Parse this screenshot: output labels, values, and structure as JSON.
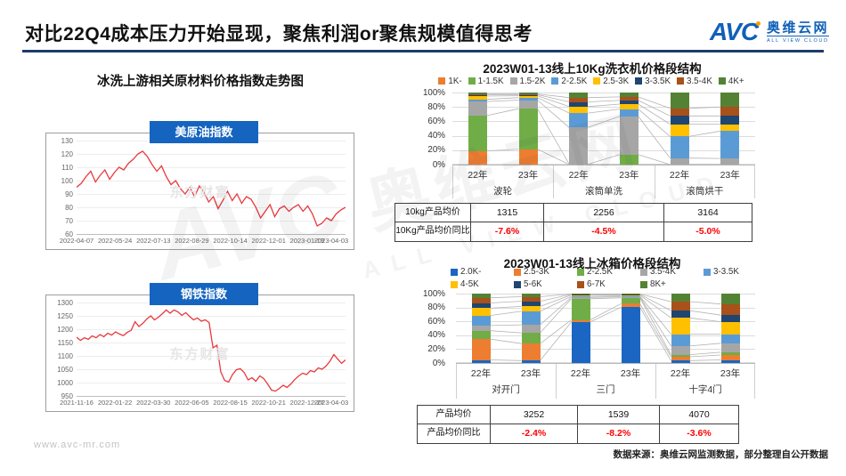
{
  "header": {
    "title": "对比22Q4成本压力开始显现，聚焦利润or聚焦规模值得思考",
    "logo": {
      "mark": "AVC",
      "name": "奥维云网",
      "tagline": "ALL VIEW CLOUD"
    }
  },
  "left_panel": {
    "section_title": "冰洗上游相关原材料价格指数走势图",
    "chart_watermark": "东方财富"
  },
  "chart_data": [
    {
      "type": "line",
      "title": "美原油指数",
      "line_color": "#E8393D",
      "ylim": [
        60,
        130
      ],
      "yticks": [
        130,
        120,
        110,
        100,
        90,
        80,
        70,
        60
      ],
      "xticks": [
        "2022-04-07",
        "2022-05-24",
        "2022-07-13",
        "2022-08-29",
        "2022-10-14",
        "2022-12-01",
        "2023-01-19",
        "2023-04-03"
      ],
      "grid": true,
      "values": [
        95,
        98,
        103,
        107,
        99,
        104,
        108,
        101,
        106,
        110,
        108,
        113,
        116,
        120,
        122,
        118,
        112,
        107,
        111,
        103,
        97,
        100,
        94,
        90,
        95,
        88,
        96,
        91,
        84,
        88,
        79,
        85,
        92,
        85,
        90,
        83,
        88,
        86,
        80,
        72,
        77,
        82,
        73,
        79,
        81,
        77,
        80,
        82,
        77,
        81,
        75,
        66,
        68,
        72,
        70,
        75,
        78,
        80
      ]
    },
    {
      "type": "line",
      "title": "钢铁指数",
      "line_color": "#E8393D",
      "ylim": [
        950,
        1300
      ],
      "yticks": [
        1300,
        1250,
        1200,
        1150,
        1100,
        1050,
        1000,
        950
      ],
      "xticks": [
        "2021-11-16",
        "2022-01-22",
        "2022-03-30",
        "2022-06-05",
        "2022-08-15",
        "2022-10-21",
        "2022-12-27",
        "2023-04-03"
      ],
      "grid": true,
      "values": [
        1170,
        1158,
        1168,
        1162,
        1175,
        1168,
        1180,
        1172,
        1185,
        1178,
        1190,
        1182,
        1176,
        1188,
        1196,
        1228,
        1210,
        1222,
        1238,
        1250,
        1235,
        1245,
        1258,
        1272,
        1260,
        1272,
        1265,
        1252,
        1262,
        1248,
        1235,
        1242,
        1230,
        1235,
        1225,
        1130,
        1140,
        1040,
        1008,
        1002,
        1030,
        1048,
        1052,
        1038,
        1010,
        1018,
        1005,
        1025,
        1015,
        995,
        972,
        968,
        978,
        990,
        982,
        995,
        1012,
        1025,
        1035,
        1030,
        1045,
        1040,
        1055,
        1050,
        1062,
        1080,
        1105,
        1088,
        1072,
        1085
      ]
    },
    {
      "type": "bar",
      "stacked": true,
      "unit": "percent",
      "title": "2023W01-13线上10Kg洗衣机价格段结构",
      "yticks": [
        "100%",
        "80%",
        "60%",
        "40%",
        "20%",
        "0%"
      ],
      "legend": [
        "1K-",
        "1-1.5K",
        "1.5-2K",
        "2-2.5K",
        "2.5-3K",
        "3-3.5K",
        "3.5-4K",
        "4K+"
      ],
      "colors": [
        "#ED7D31",
        "#70AD47",
        "#A6A6A6",
        "#5B9BD5",
        "#FFC000",
        "#1F4571",
        "#A8511A",
        "#548235"
      ],
      "groups": [
        "波轮",
        "滚筒单洗",
        "滚筒烘干"
      ],
      "categories": [
        "22年",
        "23年"
      ],
      "legend_position": "top",
      "series_values_by_bar": [
        [
          19,
          49,
          19.5,
          3,
          4.5,
          2,
          1,
          2
        ],
        [
          21.5,
          56,
          12,
          3.5,
          2.5,
          1.5,
          1,
          2
        ],
        [
          0,
          0.5,
          51,
          20,
          9,
          6.5,
          6,
          7
        ],
        [
          0,
          14,
          53,
          10,
          7,
          5,
          5,
          6
        ],
        [
          0,
          0,
          9,
          30,
          17,
          11.5,
          10.5,
          22
        ],
        [
          0,
          0,
          8.5,
          38,
          9.5,
          11.5,
          12.5,
          20
        ]
      ]
    },
    {
      "type": "bar",
      "stacked": true,
      "unit": "percent",
      "title": "2023W01-13线上冰箱价格段结构",
      "yticks": [
        "100%",
        "80%",
        "60%",
        "40%",
        "20%",
        "0%"
      ],
      "legend": [
        "2.0K-",
        "2.5-3K",
        "2-2.5K",
        "3.5-4K",
        "3-3.5K",
        "4-5K",
        "5-6K",
        "6-7K",
        "8K+"
      ],
      "colors": [
        "#1A66C2",
        "#ED7D31",
        "#70AD47",
        "#A6A6A6",
        "#5B9BD5",
        "#FFC000",
        "#1F4571",
        "#A8511A",
        "#548235"
      ],
      "groups": [
        "对开门",
        "三门",
        "十字4门"
      ],
      "categories": [
        "22年",
        "23年"
      ],
      "legend_position": "top",
      "series_values_by_bar": [
        [
          4.5,
          30,
          12,
          7.5,
          14.5,
          10.5,
          7.5,
          7.5,
          6
        ],
        [
          3.5,
          24.5,
          15.5,
          11.5,
          19.5,
          7,
          7.5,
          6.5,
          4.5
        ],
        [
          59,
          3,
          30.5,
          2,
          1.5,
          2,
          1,
          0.5,
          0.5
        ],
        [
          80.5,
          5,
          8.5,
          1.5,
          1,
          1.5,
          1,
          0.5,
          0.5
        ],
        [
          3.5,
          5.5,
          3,
          12.5,
          17,
          23.5,
          10.5,
          13,
          11.5
        ],
        [
          4.5,
          7,
          4,
          13,
          13,
          18,
          9.5,
          16,
          14.5
        ]
      ]
    }
  ],
  "tables": [
    {
      "rows": [
        {
          "label": "10kg产品均价",
          "values": [
            "1315",
            "2256",
            "3164"
          ]
        },
        {
          "label": "10Kg产品均价同比",
          "values": [
            "-7.6%",
            "-4.5%",
            "-5.0%"
          ]
        }
      ]
    },
    {
      "rows": [
        {
          "label": "产品均价",
          "values": [
            "3252",
            "1539",
            "4070"
          ]
        },
        {
          "label": "产品均价同比",
          "values": [
            "-2.4%",
            "-8.2%",
            "-3.6%"
          ]
        }
      ]
    }
  ],
  "footer": {
    "site": "www.avc-mr.com",
    "source": "数据来源：奥维云网监测数据，部分整理自公开数据"
  }
}
